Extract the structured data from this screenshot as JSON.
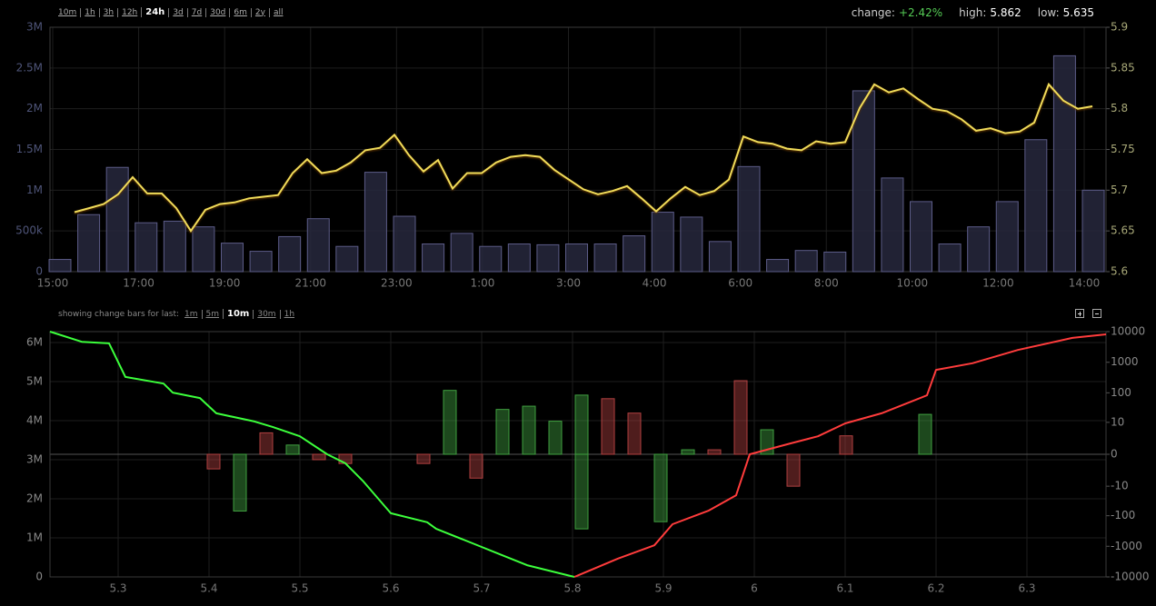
{
  "toolbar": {
    "ranges": [
      "10m",
      "1h",
      "3h",
      "12h",
      "24h",
      "3d",
      "7d",
      "30d",
      "6m",
      "2y",
      "all"
    ],
    "active": "24h"
  },
  "stats": {
    "change_label": "change:",
    "change": "+2.42%",
    "high_label": "high:",
    "high": "5.862",
    "low_label": "low:",
    "low": "5.635"
  },
  "change_bars_menu": {
    "label": "showing change bars for last:",
    "options": [
      "1m",
      "5m",
      "10m",
      "30m",
      "1h"
    ],
    "active": "10m"
  },
  "chart_data": [
    {
      "type": "bar",
      "xtick_labels": [
        "15:00",
        "17:00",
        "19:00",
        "21:00",
        "23:00",
        "1:00",
        "3:00",
        "4:00",
        "6:00",
        "8:00",
        "10:00",
        "12:00",
        "14:00"
      ],
      "ylim": [
        0,
        3000000
      ],
      "yticks": [
        0,
        {
          "value": 500000,
          "label": "500k"
        },
        {
          "value": 1000000,
          "label": "1M"
        },
        {
          "value": 1500000,
          "label": "1.5M"
        },
        {
          "value": 2000000,
          "label": "2M"
        },
        {
          "value": 2500000,
          "label": "2.5M"
        },
        {
          "value": 3000000,
          "label": "3M"
        }
      ],
      "y2lim": [
        5.6,
        5.9
      ],
      "y2ticks": [
        5.6,
        5.65,
        5.7,
        5.75,
        5.8,
        5.85,
        5.9
      ],
      "grid": true,
      "series": [
        {
          "color": "#27283d",
          "values": [
            150000,
            700000,
            1280000,
            600000,
            620000,
            550000,
            350000,
            250000,
            430000,
            650000,
            310000,
            1220000,
            680000,
            340000,
            470000,
            310000,
            340000,
            330000,
            340000,
            340000,
            440000,
            730000,
            670000,
            370000,
            1290000,
            150000,
            260000,
            240000,
            2220000,
            1150000,
            860000,
            340000,
            550000,
            860000,
            1620000,
            2650000,
            1000000
          ]
        },
        {
          "color": "#f0dc5a",
          "axis": "y2",
          "values": [
            5.673,
            5.678,
            5.683,
            5.695,
            5.716,
            5.696,
            5.696,
            5.678,
            5.65,
            5.676,
            5.683,
            5.685,
            5.69,
            5.692,
            5.694,
            5.721,
            5.738,
            5.721,
            5.724,
            5.734,
            5.749,
            5.752,
            5.768,
            5.743,
            5.723,
            5.737,
            5.702,
            5.721,
            5.721,
            5.734,
            5.741,
            5.743,
            5.741,
            5.725,
            5.713,
            5.701,
            5.695,
            5.699,
            5.705,
            5.69,
            5.674,
            5.69,
            5.704,
            5.694,
            5.699,
            5.713,
            5.766,
            5.759,
            5.757,
            5.751,
            5.749,
            5.76,
            5.757,
            5.759,
            5.801,
            5.83,
            5.82,
            5.825,
            5.812,
            5.8,
            5.797,
            5.787,
            5.773,
            5.776,
            5.77,
            5.772,
            5.783,
            5.83,
            5.81,
            5.8,
            5.803
          ]
        }
      ]
    },
    {
      "type": "depth",
      "xlim": [
        5.225,
        6.387
      ],
      "xticks": [
        5.3,
        5.4,
        5.5,
        5.6,
        5.7,
        5.8,
        5.9,
        6,
        6.1,
        6.2,
        6.3
      ],
      "ylim": [
        0,
        6280000
      ],
      "yticks": [
        0,
        {
          "value": 1000000,
          "label": "1M"
        },
        {
          "value": 2000000,
          "label": "2M"
        },
        {
          "value": 3000000,
          "label": "3M"
        },
        {
          "value": 4000000,
          "label": "4M"
        },
        {
          "value": 5000000,
          "label": "5M"
        },
        {
          "value": 6000000,
          "label": "6M"
        }
      ],
      "y2lim": [
        -10000,
        10000
      ],
      "y2scale": "symlog",
      "y2ticks": [
        10000,
        1000,
        100,
        10,
        0,
        -10,
        -100,
        -1000,
        -10000
      ],
      "grid": true,
      "bids": {
        "color": "#3cff3c",
        "x": [
          5.225,
          5.26,
          5.29,
          5.308,
          5.35,
          5.36,
          5.39,
          5.408,
          5.45,
          5.47,
          5.5,
          5.53,
          5.55,
          5.57,
          5.6,
          5.64,
          5.65,
          5.69,
          5.72,
          5.75,
          5.802
        ],
        "values": [
          6280000,
          6020000,
          5980000,
          5120000,
          4950000,
          4720000,
          4580000,
          4190000,
          3980000,
          3840000,
          3600000,
          3140000,
          2910000,
          2440000,
          1630000,
          1400000,
          1230000,
          860000,
          580000,
          300000,
          0
        ]
      },
      "asks": {
        "color": "#ff3c3c",
        "x": [
          5.802,
          5.85,
          5.89,
          5.91,
          5.95,
          5.98,
          5.995,
          6.04,
          6.07,
          6.1,
          6.14,
          6.19,
          6.2,
          6.24,
          6.29,
          6.35,
          6.387
        ],
        "values": [
          0,
          470000,
          810000,
          1350000,
          1700000,
          2090000,
          3140000,
          3420000,
          3600000,
          3930000,
          4190000,
          4650000,
          5300000,
          5470000,
          5810000,
          6120000,
          6210000
        ]
      },
      "change_bars": {
        "x": [
          5.405,
          5.434,
          5.463,
          5.492,
          5.521,
          5.55,
          5.636,
          5.665,
          5.694,
          5.723,
          5.752,
          5.781,
          5.81,
          5.81,
          5.839,
          5.868,
          5.897,
          5.927,
          5.956,
          5.985,
          6.014,
          6.043,
          6.101,
          6.188
        ],
        "values": [
          -2,
          -70,
          4,
          1,
          -0.5,
          -1,
          -1,
          120,
          -5,
          28,
          36,
          11,
          84,
          -270,
          64,
          21,
          -157,
          0.4,
          0.4,
          250,
          5.3,
          -10,
          3,
          19
        ],
        "colors": [
          "#b04040",
          "#40a040",
          "#b04040",
          "#40a040",
          "#b04040",
          "#b04040",
          "#b04040",
          "#40a040",
          "#b04040",
          "#40a040",
          "#40a040",
          "#40a040",
          "#40a040",
          "#40a040",
          "#b04040",
          "#b04040",
          "#40a040",
          "#40a040",
          "#b04040",
          "#b04040",
          "#40a040",
          "#b04040",
          "#b04040",
          "#40a040"
        ]
      }
    }
  ]
}
